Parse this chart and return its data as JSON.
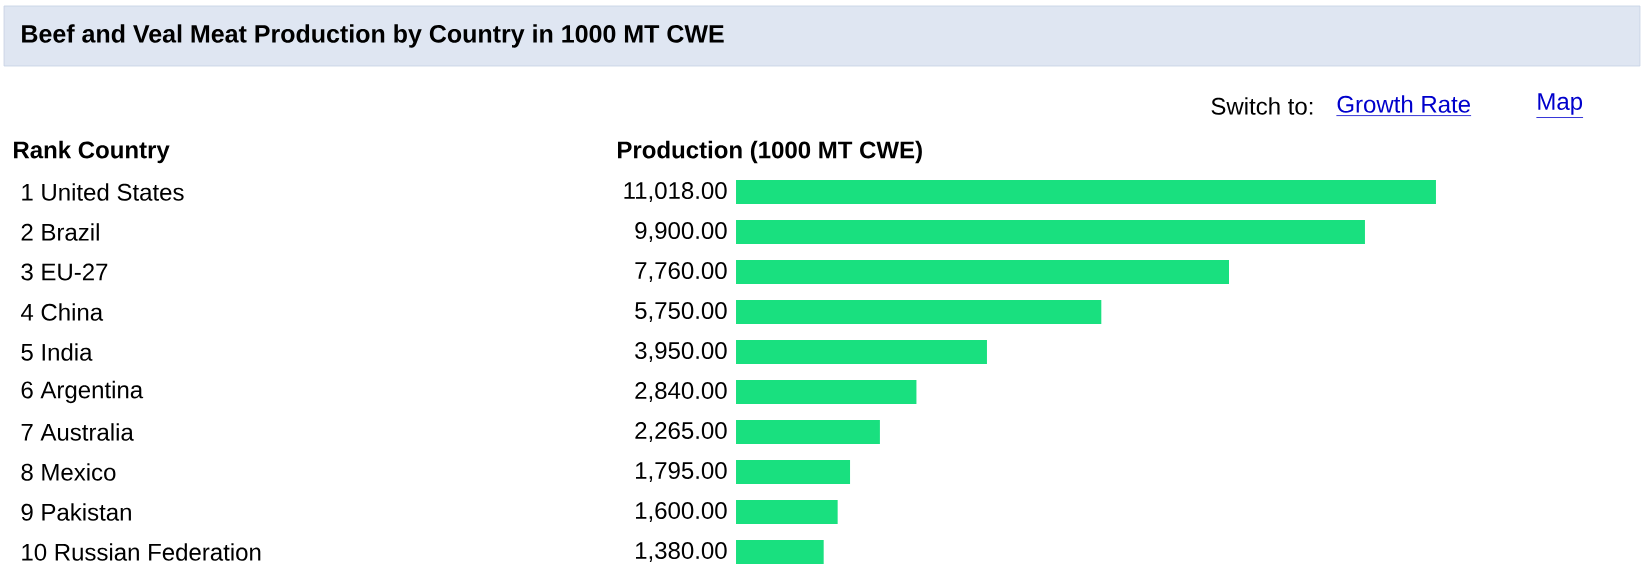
{
  "chart_data": {
    "type": "bar",
    "orientation": "horizontal",
    "title": "Beef and Veal Meat Production by Country in 1000 MT CWE",
    "xlabel": "Production (1000 MT CWE)",
    "ylabel": "Rank Country",
    "categories": [
      "1 United States",
      "2 Brazil",
      "3 EU-27",
      "4 China",
      "5 India",
      "6 Argentina",
      "7 Australia",
      "8 Mexico",
      "9 Pakistan",
      "10 Russian Federation"
    ],
    "values": [
      11018,
      9900,
      7760,
      5750,
      3950,
      2840,
      2265,
      1795,
      1600,
      1380
    ],
    "value_labels": [
      "11,018.00",
      "9,900.00",
      "7,760.00",
      "5,750.00",
      "3,950.00",
      "2,840.00",
      "2,265.00",
      "1,795.00",
      "1,600.00",
      "1,380.00"
    ],
    "color": "#19e07f",
    "annotations": [
      "Switch to:",
      "Growth Rate",
      "Map"
    ]
  }
}
